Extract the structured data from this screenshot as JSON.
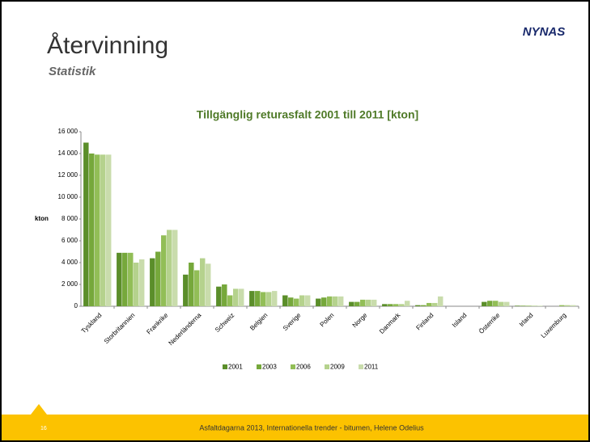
{
  "slide": {
    "title": "Återvinning",
    "subtitle": "Statistik",
    "logo": "NYNAS",
    "page_number": "16",
    "footer": "Asfaltdagarna 2013, Internationella trender - bitumen, Helene Odelius"
  },
  "chart_data": {
    "type": "bar",
    "title": "Tillgänglig returasfalt 2001 till 2011 [kton]",
    "y_label": "kton",
    "categories": [
      "Tyskland",
      "Storbritannien",
      "Frankrike",
      "Nederländerna",
      "Schweiz",
      "Belgien",
      "Sverige",
      "Polen",
      "Norge",
      "Danmark",
      "Finland",
      "Island",
      "Österrike",
      "Irland",
      "Luxemburg"
    ],
    "series": [
      {
        "name": "2001",
        "color": "#5b8e2a",
        "values": [
          15000,
          4900,
          4400,
          2900,
          1800,
          1400,
          1000,
          700,
          400,
          200,
          100,
          0,
          400,
          50,
          0
        ]
      },
      {
        "name": "2003",
        "color": "#76a83b",
        "values": [
          14000,
          4900,
          5000,
          4000,
          2000,
          1400,
          800,
          800,
          400,
          200,
          100,
          0,
          500,
          50,
          0
        ]
      },
      {
        "name": "2006",
        "color": "#92be57",
        "values": [
          13900,
          4900,
          6500,
          3300,
          1000,
          1300,
          700,
          900,
          600,
          200,
          300,
          0,
          500,
          50,
          100
        ]
      },
      {
        "name": "2009",
        "color": "#b5d28d",
        "values": [
          13900,
          4000,
          7000,
          4400,
          1600,
          1300,
          1000,
          900,
          600,
          200,
          300,
          0,
          400,
          50,
          100
        ]
      },
      {
        "name": "2011",
        "color": "#c9dcac",
        "values": [
          13900,
          4300,
          7000,
          3900,
          1600,
          1400,
          1000,
          900,
          600,
          500,
          900,
          0,
          400,
          50,
          100
        ]
      }
    ],
    "ylim": [
      0,
      16000
    ],
    "yticks": [
      0,
      {
        "value": 2000,
        "label": "2 000"
      },
      {
        "value": 4000,
        "label": "4 000"
      },
      {
        "value": 6000,
        "label": "6 000"
      },
      {
        "value": 8000,
        "label": "8 000"
      },
      {
        "value": 10000,
        "label": "10 000"
      },
      {
        "value": 12000,
        "label": "12 000"
      },
      {
        "value": 14000,
        "label": "14 000"
      },
      {
        "value": 16000,
        "label": "16 000"
      }
    ],
    "legend": "bottom"
  }
}
